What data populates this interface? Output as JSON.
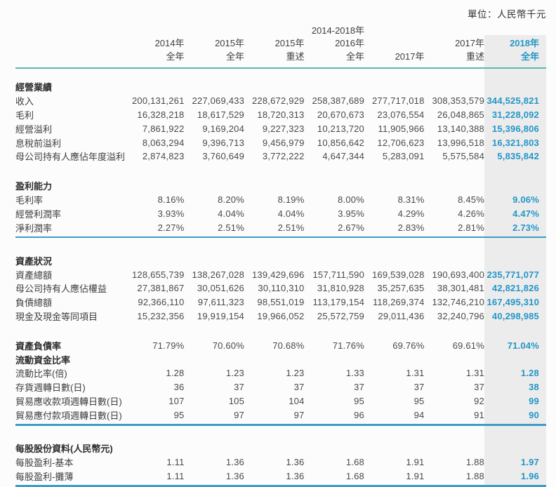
{
  "unit_label": "單位：人民幣千元",
  "colors": {
    "accent_blue": "#2596c8",
    "highlight_band": "#ececec",
    "header_rule_teal": "#5cb8b2",
    "section_rule_blue": "#3d9dc2"
  },
  "header": {
    "range_label": "2014-2018年",
    "columns": [
      {
        "line1": "2014年",
        "line2": "全年"
      },
      {
        "line1": "2015年",
        "line2": "全年"
      },
      {
        "line1": "2015年",
        "line2": "重述"
      },
      {
        "line1": "2016年",
        "line2": "全年"
      },
      {
        "line1": "",
        "line2": "2017年"
      },
      {
        "line1": "2017年",
        "line2": "重述"
      },
      {
        "line1": "2018年",
        "line2": "全年"
      }
    ]
  },
  "table": {
    "sections": [
      {
        "rows": [
          {
            "label": "經營業績",
            "bold": true
          },
          {
            "label": "收入",
            "values": [
              "200,131,261",
              "227,069,433",
              "228,672,929",
              "258,387,689",
              "277,717,018",
              "308,353,579",
              "344,525,821"
            ]
          },
          {
            "label": "毛利",
            "values": [
              "16,328,218",
              "18,617,529",
              "18,720,313",
              "20,670,673",
              "23,076,554",
              "26,048,865",
              "31,228,092"
            ]
          },
          {
            "label": "經營溢利",
            "values": [
              "7,861,922",
              "9,169,204",
              "9,227,323",
              "10,213,720",
              "11,905,966",
              "13,140,388",
              "15,396,806"
            ]
          },
          {
            "label": "息稅前溢利",
            "values": [
              "8,063,294",
              "9,396,713",
              "9,456,979",
              "10,856,642",
              "12,706,623",
              "13,996,518",
              "16,321,803"
            ]
          },
          {
            "label": "母公司持有人應佔年度溢利",
            "values": [
              "2,874,823",
              "3,760,649",
              "3,772,222",
              "4,647,344",
              "5,283,091",
              "5,575,584",
              "5,835,842"
            ]
          }
        ],
        "divider_after": false
      },
      {
        "rows": [
          {
            "label": "盈利能力",
            "bold": true
          },
          {
            "label": "毛利率",
            "values": [
              "8.16%",
              "8.20%",
              "8.19%",
              "8.00%",
              "8.31%",
              "8.45%",
              "9.06%"
            ]
          },
          {
            "label": "經營利潤率",
            "values": [
              "3.93%",
              "4.04%",
              "4.04%",
              "3.95%",
              "4.29%",
              "4.26%",
              "4.47%"
            ]
          },
          {
            "label": "淨利潤率",
            "values": [
              "2.27%",
              "2.51%",
              "2.51%",
              "2.67%",
              "2.83%",
              "2.81%",
              "2.73%"
            ]
          }
        ],
        "divider_after": true
      },
      {
        "rows": [
          {
            "label": "資產狀況",
            "bold": true
          },
          {
            "label": "資產總額",
            "values": [
              "128,655,739",
              "138,267,028",
              "139,429,696",
              "157,711,590",
              "169,539,028",
              "190,693,400",
              "235,771,077"
            ]
          },
          {
            "label": "母公司持有人應佔權益",
            "values": [
              "27,381,867",
              "30,051,626",
              "30,110,310",
              "31,810,928",
              "35,257,635",
              "38,301,481",
              "42,821,826"
            ]
          },
          {
            "label": "負債總額",
            "values": [
              "92,366,110",
              "97,611,323",
              "98,551,019",
              "113,179,154",
              "118,269,374",
              "132,746,210",
              "167,495,310"
            ]
          },
          {
            "label": "現金及現金等同項目",
            "values": [
              "15,232,356",
              "19,919,154",
              "19,966,052",
              "25,572,759",
              "29,011,436",
              "32,240,796",
              "40,298,985"
            ]
          }
        ],
        "divider_after": false
      },
      {
        "rows": [
          {
            "label": "資產負債率",
            "bold": true,
            "values": [
              "71.79%",
              "70.60%",
              "70.68%",
              "71.76%",
              "69.76%",
              "69.61%",
              "71.04%"
            ]
          },
          {
            "label": "流動資金比率",
            "bold": true
          },
          {
            "label": "流動比率(倍)",
            "values": [
              "1.28",
              "1.23",
              "1.23",
              "1.33",
              "1.31",
              "1.31",
              "1.28"
            ]
          },
          {
            "label": "存貨週轉日數(日)",
            "values": [
              "36",
              "37",
              "37",
              "37",
              "37",
              "37",
              "38"
            ]
          },
          {
            "label": "貿易應收款項週轉日數(日)",
            "values": [
              "107",
              "105",
              "104",
              "95",
              "95",
              "92",
              "99"
            ]
          },
          {
            "label": "貿易應付款項週轉日數(日)",
            "values": [
              "95",
              "97",
              "97",
              "96",
              "94",
              "91",
              "90"
            ]
          }
        ],
        "divider_after": true
      },
      {
        "rows": [
          {
            "label": "每股股份資料(人民幣元)",
            "bold": true
          },
          {
            "label": "每股盈利-基本",
            "values": [
              "1.11",
              "1.36",
              "1.36",
              "1.68",
              "1.91",
              "1.88",
              "1.97"
            ]
          },
          {
            "label": "每股盈利-攤薄",
            "values": [
              "1.11",
              "1.36",
              "1.36",
              "1.68",
              "1.91",
              "1.88",
              "1.96"
            ]
          }
        ],
        "divider_after": true
      }
    ]
  }
}
